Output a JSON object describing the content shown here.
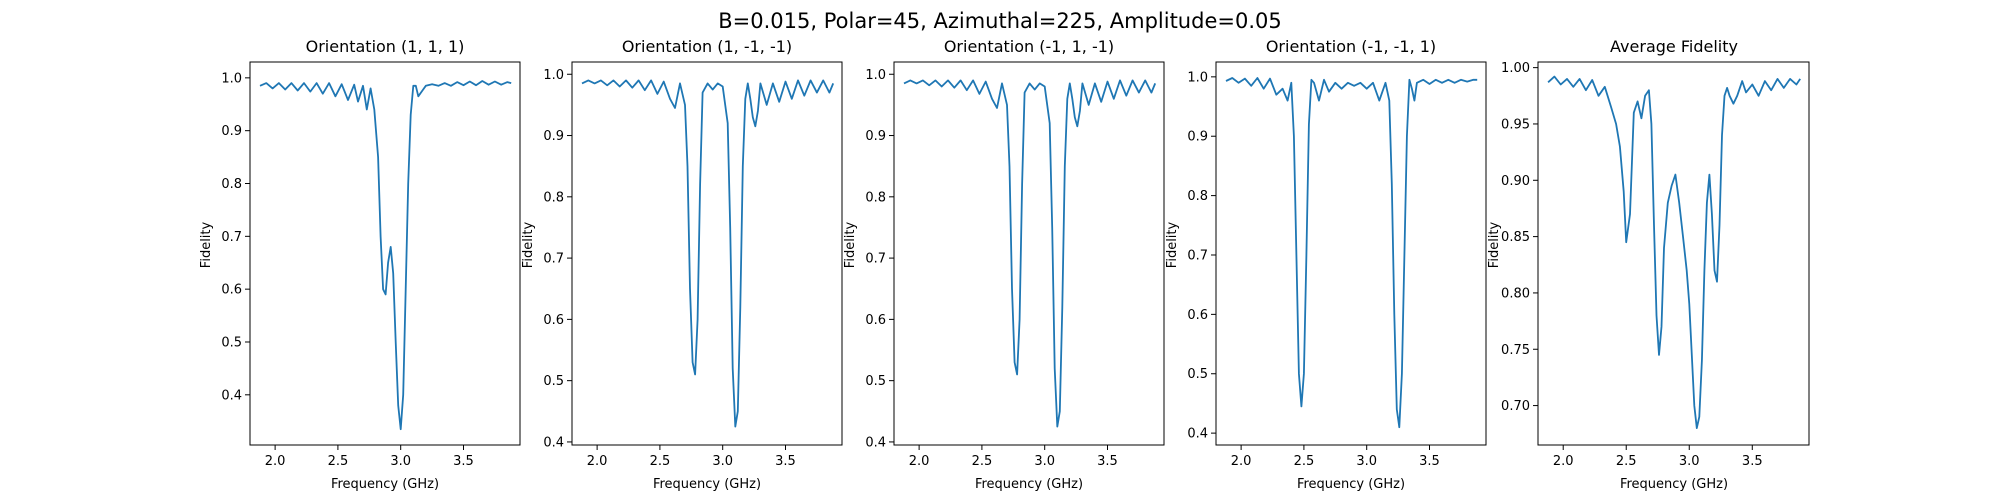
{
  "figure": {
    "suptitle": "B=0.015, Polar=45, Azimuthal=225, Amplitude=0.05",
    "line_color": "#1f77b4"
  },
  "chart_data": [
    {
      "type": "line",
      "title": "Orientation (1, 1, 1)",
      "xlabel": "Frequency (GHz)",
      "ylabel": "Fidelity",
      "xlim": [
        1.8,
        3.95
      ],
      "ylim": [
        0.305,
        1.03
      ],
      "xticks": [
        2.0,
        2.5,
        3.0,
        3.5
      ],
      "xticklabels": [
        "2.0",
        "2.5",
        "3.0",
        "3.5"
      ],
      "yticks": [
        0.4,
        0.5,
        0.6,
        0.7,
        0.8,
        0.9,
        1.0
      ],
      "yticklabels": [
        "0.4",
        "0.5",
        "0.6",
        "0.7",
        "0.8",
        "0.9",
        "1.0"
      ],
      "series": [
        {
          "name": "fidelity",
          "x": [
            1.88,
            1.93,
            1.98,
            2.03,
            2.08,
            2.13,
            2.18,
            2.23,
            2.28,
            2.33,
            2.38,
            2.43,
            2.48,
            2.53,
            2.58,
            2.63,
            2.66,
            2.7,
            2.73,
            2.76,
            2.79,
            2.82,
            2.84,
            2.86,
            2.88,
            2.9,
            2.92,
            2.94,
            2.96,
            2.98,
            3.0,
            3.02,
            3.04,
            3.06,
            3.08,
            3.1,
            3.12,
            3.14,
            3.17,
            3.2,
            3.25,
            3.3,
            3.35,
            3.4,
            3.45,
            3.5,
            3.55,
            3.6,
            3.65,
            3.7,
            3.75,
            3.8,
            3.85,
            3.88
          ],
          "y": [
            0.985,
            0.99,
            0.98,
            0.99,
            0.978,
            0.99,
            0.976,
            0.99,
            0.974,
            0.99,
            0.97,
            0.99,
            0.965,
            0.988,
            0.958,
            0.987,
            0.955,
            0.985,
            0.94,
            0.98,
            0.94,
            0.85,
            0.7,
            0.6,
            0.59,
            0.65,
            0.68,
            0.63,
            0.5,
            0.38,
            0.335,
            0.4,
            0.6,
            0.8,
            0.93,
            0.985,
            0.985,
            0.965,
            0.975,
            0.985,
            0.988,
            0.985,
            0.99,
            0.985,
            0.992,
            0.986,
            0.993,
            0.986,
            0.994,
            0.987,
            0.993,
            0.987,
            0.992,
            0.99
          ]
        }
      ]
    },
    {
      "type": "line",
      "title": "Orientation (1, -1, -1)",
      "xlabel": "Frequency (GHz)",
      "ylabel": "Fidelity",
      "xlim": [
        1.8,
        3.95
      ],
      "ylim": [
        0.395,
        1.02
      ],
      "xticks": [
        2.0,
        2.5,
        3.0,
        3.5
      ],
      "xticklabels": [
        "2.0",
        "2.5",
        "3.0",
        "3.5"
      ],
      "yticks": [
        0.4,
        0.5,
        0.6,
        0.7,
        0.8,
        0.9,
        1.0
      ],
      "yticklabels": [
        "0.4",
        "0.5",
        "0.6",
        "0.7",
        "0.8",
        "0.9",
        "1.0"
      ],
      "series": [
        {
          "name": "fidelity",
          "x": [
            1.88,
            1.93,
            1.98,
            2.03,
            2.08,
            2.13,
            2.18,
            2.23,
            2.28,
            2.33,
            2.38,
            2.43,
            2.48,
            2.53,
            2.58,
            2.62,
            2.66,
            2.7,
            2.72,
            2.74,
            2.76,
            2.78,
            2.8,
            2.82,
            2.84,
            2.88,
            2.92,
            2.96,
            3.0,
            3.04,
            3.06,
            3.08,
            3.1,
            3.12,
            3.14,
            3.16,
            3.18,
            3.2,
            3.22,
            3.24,
            3.26,
            3.28,
            3.3,
            3.35,
            3.4,
            3.45,
            3.5,
            3.55,
            3.6,
            3.65,
            3.7,
            3.75,
            3.8,
            3.85,
            3.88
          ],
          "y": [
            0.985,
            0.99,
            0.985,
            0.99,
            0.982,
            0.99,
            0.98,
            0.99,
            0.978,
            0.99,
            0.974,
            0.99,
            0.968,
            0.988,
            0.96,
            0.945,
            0.985,
            0.95,
            0.85,
            0.65,
            0.53,
            0.51,
            0.6,
            0.82,
            0.97,
            0.985,
            0.975,
            0.985,
            0.98,
            0.92,
            0.75,
            0.52,
            0.425,
            0.45,
            0.62,
            0.85,
            0.96,
            0.985,
            0.96,
            0.93,
            0.915,
            0.94,
            0.985,
            0.95,
            0.985,
            0.955,
            0.988,
            0.96,
            0.99,
            0.965,
            0.99,
            0.97,
            0.99,
            0.97,
            0.985
          ]
        }
      ]
    },
    {
      "type": "line",
      "title": "Orientation (-1, 1, -1)",
      "xlabel": "Frequency (GHz)",
      "ylabel": "Fidelity",
      "xlim": [
        1.8,
        3.95
      ],
      "ylim": [
        0.395,
        1.02
      ],
      "xticks": [
        2.0,
        2.5,
        3.0,
        3.5
      ],
      "xticklabels": [
        "2.0",
        "2.5",
        "3.0",
        "3.5"
      ],
      "yticks": [
        0.4,
        0.5,
        0.6,
        0.7,
        0.8,
        0.9,
        1.0
      ],
      "yticklabels": [
        "0.4",
        "0.5",
        "0.6",
        "0.7",
        "0.8",
        "0.9",
        "1.0"
      ],
      "series": [
        {
          "name": "fidelity",
          "x": [
            1.88,
            1.93,
            1.98,
            2.03,
            2.08,
            2.13,
            2.18,
            2.23,
            2.28,
            2.33,
            2.38,
            2.43,
            2.48,
            2.53,
            2.58,
            2.62,
            2.66,
            2.7,
            2.72,
            2.74,
            2.76,
            2.78,
            2.8,
            2.82,
            2.84,
            2.88,
            2.92,
            2.96,
            3.0,
            3.04,
            3.06,
            3.08,
            3.1,
            3.12,
            3.14,
            3.16,
            3.18,
            3.2,
            3.22,
            3.24,
            3.26,
            3.28,
            3.3,
            3.35,
            3.4,
            3.45,
            3.5,
            3.55,
            3.6,
            3.65,
            3.7,
            3.75,
            3.8,
            3.85,
            3.88
          ],
          "y": [
            0.985,
            0.99,
            0.985,
            0.99,
            0.982,
            0.99,
            0.98,
            0.99,
            0.978,
            0.99,
            0.974,
            0.99,
            0.968,
            0.988,
            0.96,
            0.945,
            0.985,
            0.95,
            0.85,
            0.65,
            0.53,
            0.51,
            0.6,
            0.82,
            0.97,
            0.985,
            0.975,
            0.985,
            0.98,
            0.92,
            0.75,
            0.52,
            0.425,
            0.45,
            0.62,
            0.85,
            0.96,
            0.985,
            0.96,
            0.93,
            0.915,
            0.94,
            0.985,
            0.95,
            0.985,
            0.955,
            0.988,
            0.96,
            0.99,
            0.965,
            0.99,
            0.97,
            0.99,
            0.97,
            0.985
          ]
        }
      ]
    },
    {
      "type": "line",
      "title": "Orientation (-1, -1, 1)",
      "xlabel": "Frequency (GHz)",
      "ylabel": "Fidelity",
      "xlim": [
        1.8,
        3.95
      ],
      "ylim": [
        0.38,
        1.025
      ],
      "xticks": [
        2.0,
        2.5,
        3.0,
        3.5
      ],
      "xticklabels": [
        "2.0",
        "2.5",
        "3.0",
        "3.5"
      ],
      "yticks": [
        0.4,
        0.5,
        0.6,
        0.7,
        0.8,
        0.9,
        1.0
      ],
      "yticklabels": [
        "0.4",
        "0.5",
        "0.6",
        "0.7",
        "0.8",
        "0.9",
        "1.0"
      ],
      "series": [
        {
          "name": "fidelity",
          "x": [
            1.88,
            1.93,
            1.98,
            2.03,
            2.08,
            2.13,
            2.18,
            2.23,
            2.28,
            2.33,
            2.37,
            2.4,
            2.42,
            2.44,
            2.46,
            2.48,
            2.5,
            2.52,
            2.54,
            2.56,
            2.58,
            2.62,
            2.66,
            2.7,
            2.75,
            2.8,
            2.85,
            2.9,
            2.95,
            3.0,
            3.05,
            3.1,
            3.15,
            3.18,
            3.2,
            3.22,
            3.24,
            3.26,
            3.28,
            3.3,
            3.32,
            3.34,
            3.36,
            3.38,
            3.4,
            3.45,
            3.5,
            3.55,
            3.6,
            3.65,
            3.7,
            3.75,
            3.8,
            3.85,
            3.88
          ],
          "y": [
            0.993,
            0.998,
            0.99,
            0.997,
            0.985,
            0.998,
            0.98,
            0.997,
            0.97,
            0.98,
            0.96,
            0.99,
            0.9,
            0.7,
            0.5,
            0.445,
            0.5,
            0.7,
            0.92,
            0.995,
            0.99,
            0.96,
            0.995,
            0.975,
            0.99,
            0.98,
            0.99,
            0.985,
            0.99,
            0.98,
            0.99,
            0.96,
            0.99,
            0.96,
            0.82,
            0.6,
            0.44,
            0.41,
            0.5,
            0.7,
            0.9,
            0.995,
            0.98,
            0.96,
            0.99,
            0.995,
            0.988,
            0.995,
            0.99,
            0.995,
            0.99,
            0.995,
            0.992,
            0.995,
            0.995
          ]
        }
      ]
    },
    {
      "type": "line",
      "title": "Average Fidelity",
      "xlabel": "Frequency (GHz)",
      "ylabel": "Fidelity",
      "xlim": [
        1.8,
        3.95
      ],
      "ylim": [
        0.665,
        1.005
      ],
      "xticks": [
        2.0,
        2.5,
        3.0,
        3.5
      ],
      "xticklabels": [
        "2.0",
        "2.5",
        "3.0",
        "3.5"
      ],
      "yticks": [
        0.7,
        0.75,
        0.8,
        0.85,
        0.9,
        0.95,
        1.0
      ],
      "yticklabels": [
        "0.70",
        "0.75",
        "0.80",
        "0.85",
        "0.90",
        "0.95",
        "1.00"
      ],
      "series": [
        {
          "name": "fidelity",
          "x": [
            1.88,
            1.93,
            1.98,
            2.03,
            2.08,
            2.13,
            2.18,
            2.23,
            2.28,
            2.33,
            2.38,
            2.42,
            2.45,
            2.48,
            2.5,
            2.53,
            2.56,
            2.59,
            2.62,
            2.65,
            2.68,
            2.7,
            2.72,
            2.74,
            2.76,
            2.78,
            2.8,
            2.83,
            2.86,
            2.89,
            2.92,
            2.95,
            2.98,
            3.0,
            3.02,
            3.04,
            3.06,
            3.08,
            3.1,
            3.12,
            3.14,
            3.16,
            3.18,
            3.2,
            3.22,
            3.24,
            3.26,
            3.28,
            3.3,
            3.32,
            3.35,
            3.38,
            3.42,
            3.45,
            3.5,
            3.55,
            3.6,
            3.65,
            3.7,
            3.75,
            3.8,
            3.85,
            3.88
          ],
          "y": [
            0.987,
            0.992,
            0.985,
            0.99,
            0.983,
            0.99,
            0.98,
            0.989,
            0.975,
            0.983,
            0.965,
            0.95,
            0.93,
            0.89,
            0.845,
            0.87,
            0.96,
            0.97,
            0.955,
            0.975,
            0.98,
            0.95,
            0.86,
            0.78,
            0.745,
            0.77,
            0.84,
            0.88,
            0.895,
            0.905,
            0.88,
            0.85,
            0.82,
            0.79,
            0.745,
            0.7,
            0.68,
            0.69,
            0.74,
            0.82,
            0.88,
            0.905,
            0.87,
            0.82,
            0.81,
            0.86,
            0.94,
            0.975,
            0.982,
            0.975,
            0.968,
            0.975,
            0.988,
            0.978,
            0.985,
            0.975,
            0.988,
            0.98,
            0.99,
            0.982,
            0.99,
            0.985,
            0.99
          ]
        }
      ]
    }
  ]
}
